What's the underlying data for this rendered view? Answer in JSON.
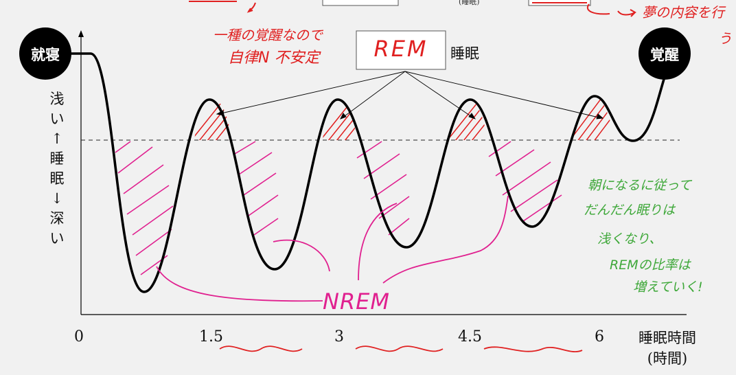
{
  "badges": {
    "left": "就寝",
    "right": "覚醒"
  },
  "y_axis_label": [
    "浅",
    "い",
    "↑",
    "睡",
    "眠",
    "↓",
    "深",
    "い"
  ],
  "x_ticks": [
    "0",
    "1.5",
    "3",
    "4.5",
    "6"
  ],
  "x_axis_label": {
    "line1": "睡眠時間",
    "line2": "(時間)"
  },
  "rem_box": {
    "handwritten": "REM",
    "label": "睡眠"
  },
  "annotations": {
    "nrem": "NREM",
    "red_note_line1": "一種の覚醒なので",
    "red_note_line2": "自律N 不安定",
    "top_right_red": "夢の内容を行",
    "top_right_red_cont": "う",
    "top_center_small": "(睡眠)",
    "green_note": [
      "朝になるに従って",
      "だんだん眠りは",
      "浅くなり、",
      "REMの比率は",
      "増えていく!"
    ]
  },
  "colors": {
    "background": "#f1f1f1",
    "curve": "#000000",
    "rem_hatch": "#e02020",
    "nrem_hatch": "#e0208f",
    "green_ink": "#3fa83a",
    "red_ink": "#e02020",
    "pink_ink": "#e0208f"
  }
}
